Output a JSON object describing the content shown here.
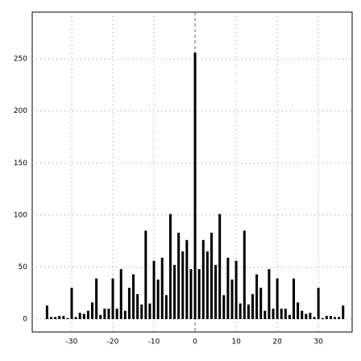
{
  "chart_data": {
    "type": "bar",
    "x": [
      -36,
      -35,
      -34,
      -33,
      -32,
      -31,
      -30,
      -29,
      -28,
      -27,
      -26,
      -25,
      -24,
      -23,
      -22,
      -21,
      -20,
      -19,
      -18,
      -17,
      -16,
      -15,
      -14,
      -13,
      -12,
      -11,
      -10,
      -9,
      -8,
      -7,
      -6,
      -5,
      -4,
      -3,
      -2,
      -1,
      0,
      1,
      2,
      3,
      4,
      5,
      6,
      7,
      8,
      9,
      10,
      11,
      12,
      13,
      14,
      15,
      16,
      17,
      18,
      19,
      20,
      21,
      22,
      23,
      24,
      25,
      26,
      27,
      28,
      29,
      30,
      31,
      32,
      33,
      34,
      35,
      36
    ],
    "values": [
      13,
      2,
      2,
      3,
      3,
      1,
      30,
      2,
      6,
      5,
      8,
      16,
      39,
      4,
      10,
      10,
      39,
      10,
      48,
      8,
      30,
      43,
      24,
      14,
      85,
      15,
      56,
      38,
      59,
      23,
      101,
      52,
      83,
      65,
      76,
      48,
      256,
      48,
      76,
      65,
      83,
      52,
      101,
      23,
      59,
      38,
      56,
      15,
      85,
      14,
      24,
      43,
      30,
      8,
      48,
      10,
      39,
      10,
      10,
      4,
      39,
      16,
      8,
      5,
      6,
      2,
      30,
      1,
      3,
      3,
      2,
      2,
      13
    ],
    "color": "#000000",
    "xlim": [
      -39.6,
      38.2
    ],
    "ylim": [
      -12.4,
      295
    ],
    "xticks": [
      -30,
      -20,
      -10,
      0,
      10,
      20,
      30
    ],
    "yticks": [
      0,
      50,
      100,
      150,
      200,
      250
    ],
    "grid": true
  }
}
